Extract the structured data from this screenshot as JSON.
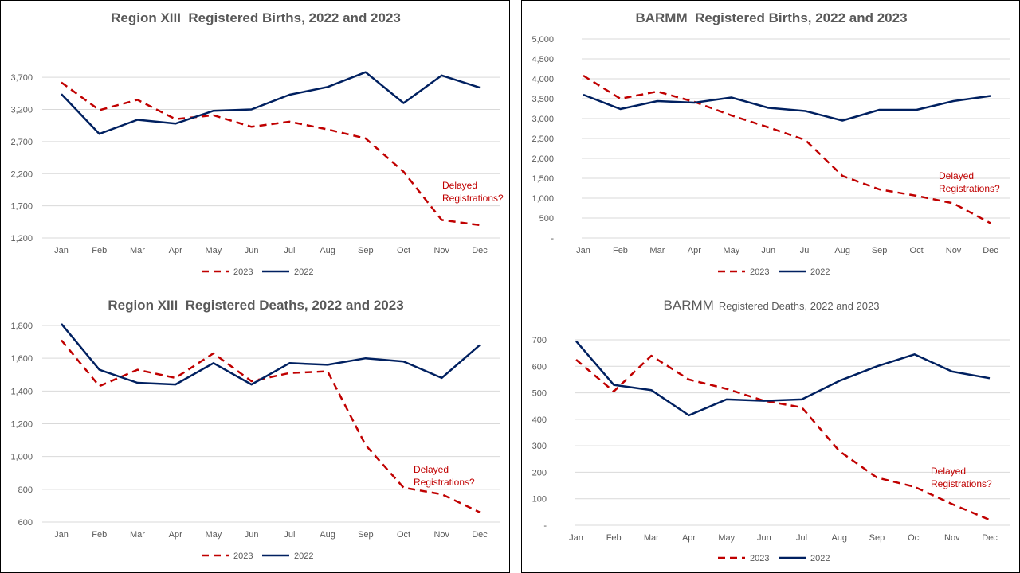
{
  "colors": {
    "y2023": "#c00000",
    "y2022": "#002060"
  },
  "chart_data": [
    {
      "type": "line",
      "title": "Region XIII  Registered Births, 2022 and 2023",
      "categories": [
        "Jan",
        "Feb",
        "Mar",
        "Apr",
        "May",
        "Jun",
        "Jul",
        "Aug",
        "Sep",
        "Oct",
        "Nov",
        "Dec"
      ],
      "yticks": [
        "1,200",
        "1,700",
        "2,200",
        "2,700",
        "3,200",
        "3,700"
      ],
      "ylim": [
        1200,
        3950
      ],
      "series": [
        {
          "name": "2023",
          "values": [
            3620,
            3190,
            3350,
            3050,
            3110,
            2930,
            3010,
            2890,
            2750,
            2230,
            1480,
            1400
          ]
        },
        {
          "name": "2022",
          "values": [
            3440,
            2820,
            3040,
            2980,
            3180,
            3200,
            3430,
            3550,
            3780,
            3300,
            3730,
            3540
          ]
        }
      ],
      "legend": [
        "2023",
        "2022"
      ],
      "annotation": [
        "Delayed",
        "Registrations?"
      ]
    },
    {
      "type": "line",
      "title": "BARMM  Registered Births, 2022 and 2023",
      "categories": [
        "Jan",
        "Feb",
        "Mar",
        "Apr",
        "May",
        "Jun",
        "Jul",
        "Aug",
        "Sep",
        "Oct",
        "Nov",
        "Dec"
      ],
      "yticks": [
        "-",
        "500",
        "1,000",
        "1,500",
        "2,000",
        "2,500",
        "3,000",
        "3,500",
        "4,000",
        "4,500",
        "5,000"
      ],
      "ylim": [
        0,
        5000
      ],
      "series": [
        {
          "name": "2023",
          "values": [
            4080,
            3500,
            3680,
            3420,
            3080,
            2780,
            2460,
            1560,
            1220,
            1060,
            870,
            370
          ]
        },
        {
          "name": "2022",
          "values": [
            3600,
            3240,
            3440,
            3400,
            3530,
            3270,
            3190,
            2950,
            3220,
            3220,
            3440,
            3570
          ]
        }
      ],
      "legend": [
        "2023",
        "2022"
      ],
      "annotation": [
        "Delayed",
        "Registrations?"
      ]
    },
    {
      "type": "line",
      "title": "Region XIII  Registered Deaths, 2022 and 2023",
      "categories": [
        "Jan",
        "Feb",
        "Mar",
        "Apr",
        "May",
        "Jun",
        "Jul",
        "Aug",
        "Sep",
        "Oct",
        "Nov",
        "Dec"
      ],
      "yticks": [
        "600",
        "800",
        "1,000",
        "1,200",
        "1,400",
        "1,600",
        "1,800"
      ],
      "ylim": [
        600,
        1800
      ],
      "series": [
        {
          "name": "2023",
          "values": [
            1710,
            1430,
            1530,
            1480,
            1630,
            1460,
            1510,
            1520,
            1070,
            810,
            770,
            660
          ]
        },
        {
          "name": "2022",
          "values": [
            1810,
            1530,
            1450,
            1440,
            1570,
            1440,
            1570,
            1560,
            1600,
            1580,
            1480,
            1680
          ]
        }
      ],
      "legend": [
        "2023",
        "2022"
      ],
      "annotation": [
        "Delayed",
        "Registrations?"
      ]
    },
    {
      "type": "line",
      "title": "BARMM",
      "subtitle": "Registered Deaths, 2022 and 2023",
      "categories": [
        "Jan",
        "Feb",
        "Mar",
        "Apr",
        "May",
        "Jun",
        "Jul",
        "Aug",
        "Sep",
        "Oct",
        "Nov",
        "Dec"
      ],
      "yticks": [
        "-",
        "100",
        "200",
        "300",
        "400",
        "500",
        "600",
        "700"
      ],
      "ylim": [
        0,
        700
      ],
      "series": [
        {
          "name": "2023",
          "values": [
            625,
            505,
            640,
            550,
            515,
            470,
            445,
            280,
            180,
            145,
            80,
            20
          ]
        },
        {
          "name": "2022",
          "values": [
            695,
            530,
            510,
            415,
            475,
            470,
            475,
            545,
            600,
            645,
            580,
            555
          ]
        }
      ],
      "legend": [
        "2023",
        "2022"
      ],
      "annotation": [
        "Delayed",
        "Registrations?"
      ]
    }
  ]
}
